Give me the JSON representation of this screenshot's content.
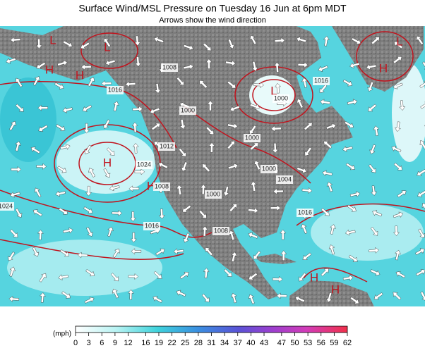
{
  "header": {
    "title": "Surface Wind/MSL Pressure on Tuesday 16 Jun at 6pm MDT",
    "subtitle": "Arrows show the wind direction"
  },
  "map": {
    "pressure_labels": [
      "L",
      "L",
      "H",
      "H",
      "L",
      "H",
      "H",
      "L",
      "H",
      "H",
      "H",
      "1008",
      "1016",
      "1000",
      "1000",
      "1024",
      "1016",
      "1012",
      "1008",
      "1000",
      "1008",
      "1000",
      "1004",
      "1016",
      "1016",
      "1024",
      "1000"
    ]
  },
  "legend": {
    "unit": "(mph)",
    "ticks": [
      0,
      3,
      6,
      9,
      12,
      16,
      19,
      22,
      25,
      28,
      31,
      34,
      37,
      40,
      43,
      47,
      50,
      53,
      56,
      59,
      62
    ]
  }
}
